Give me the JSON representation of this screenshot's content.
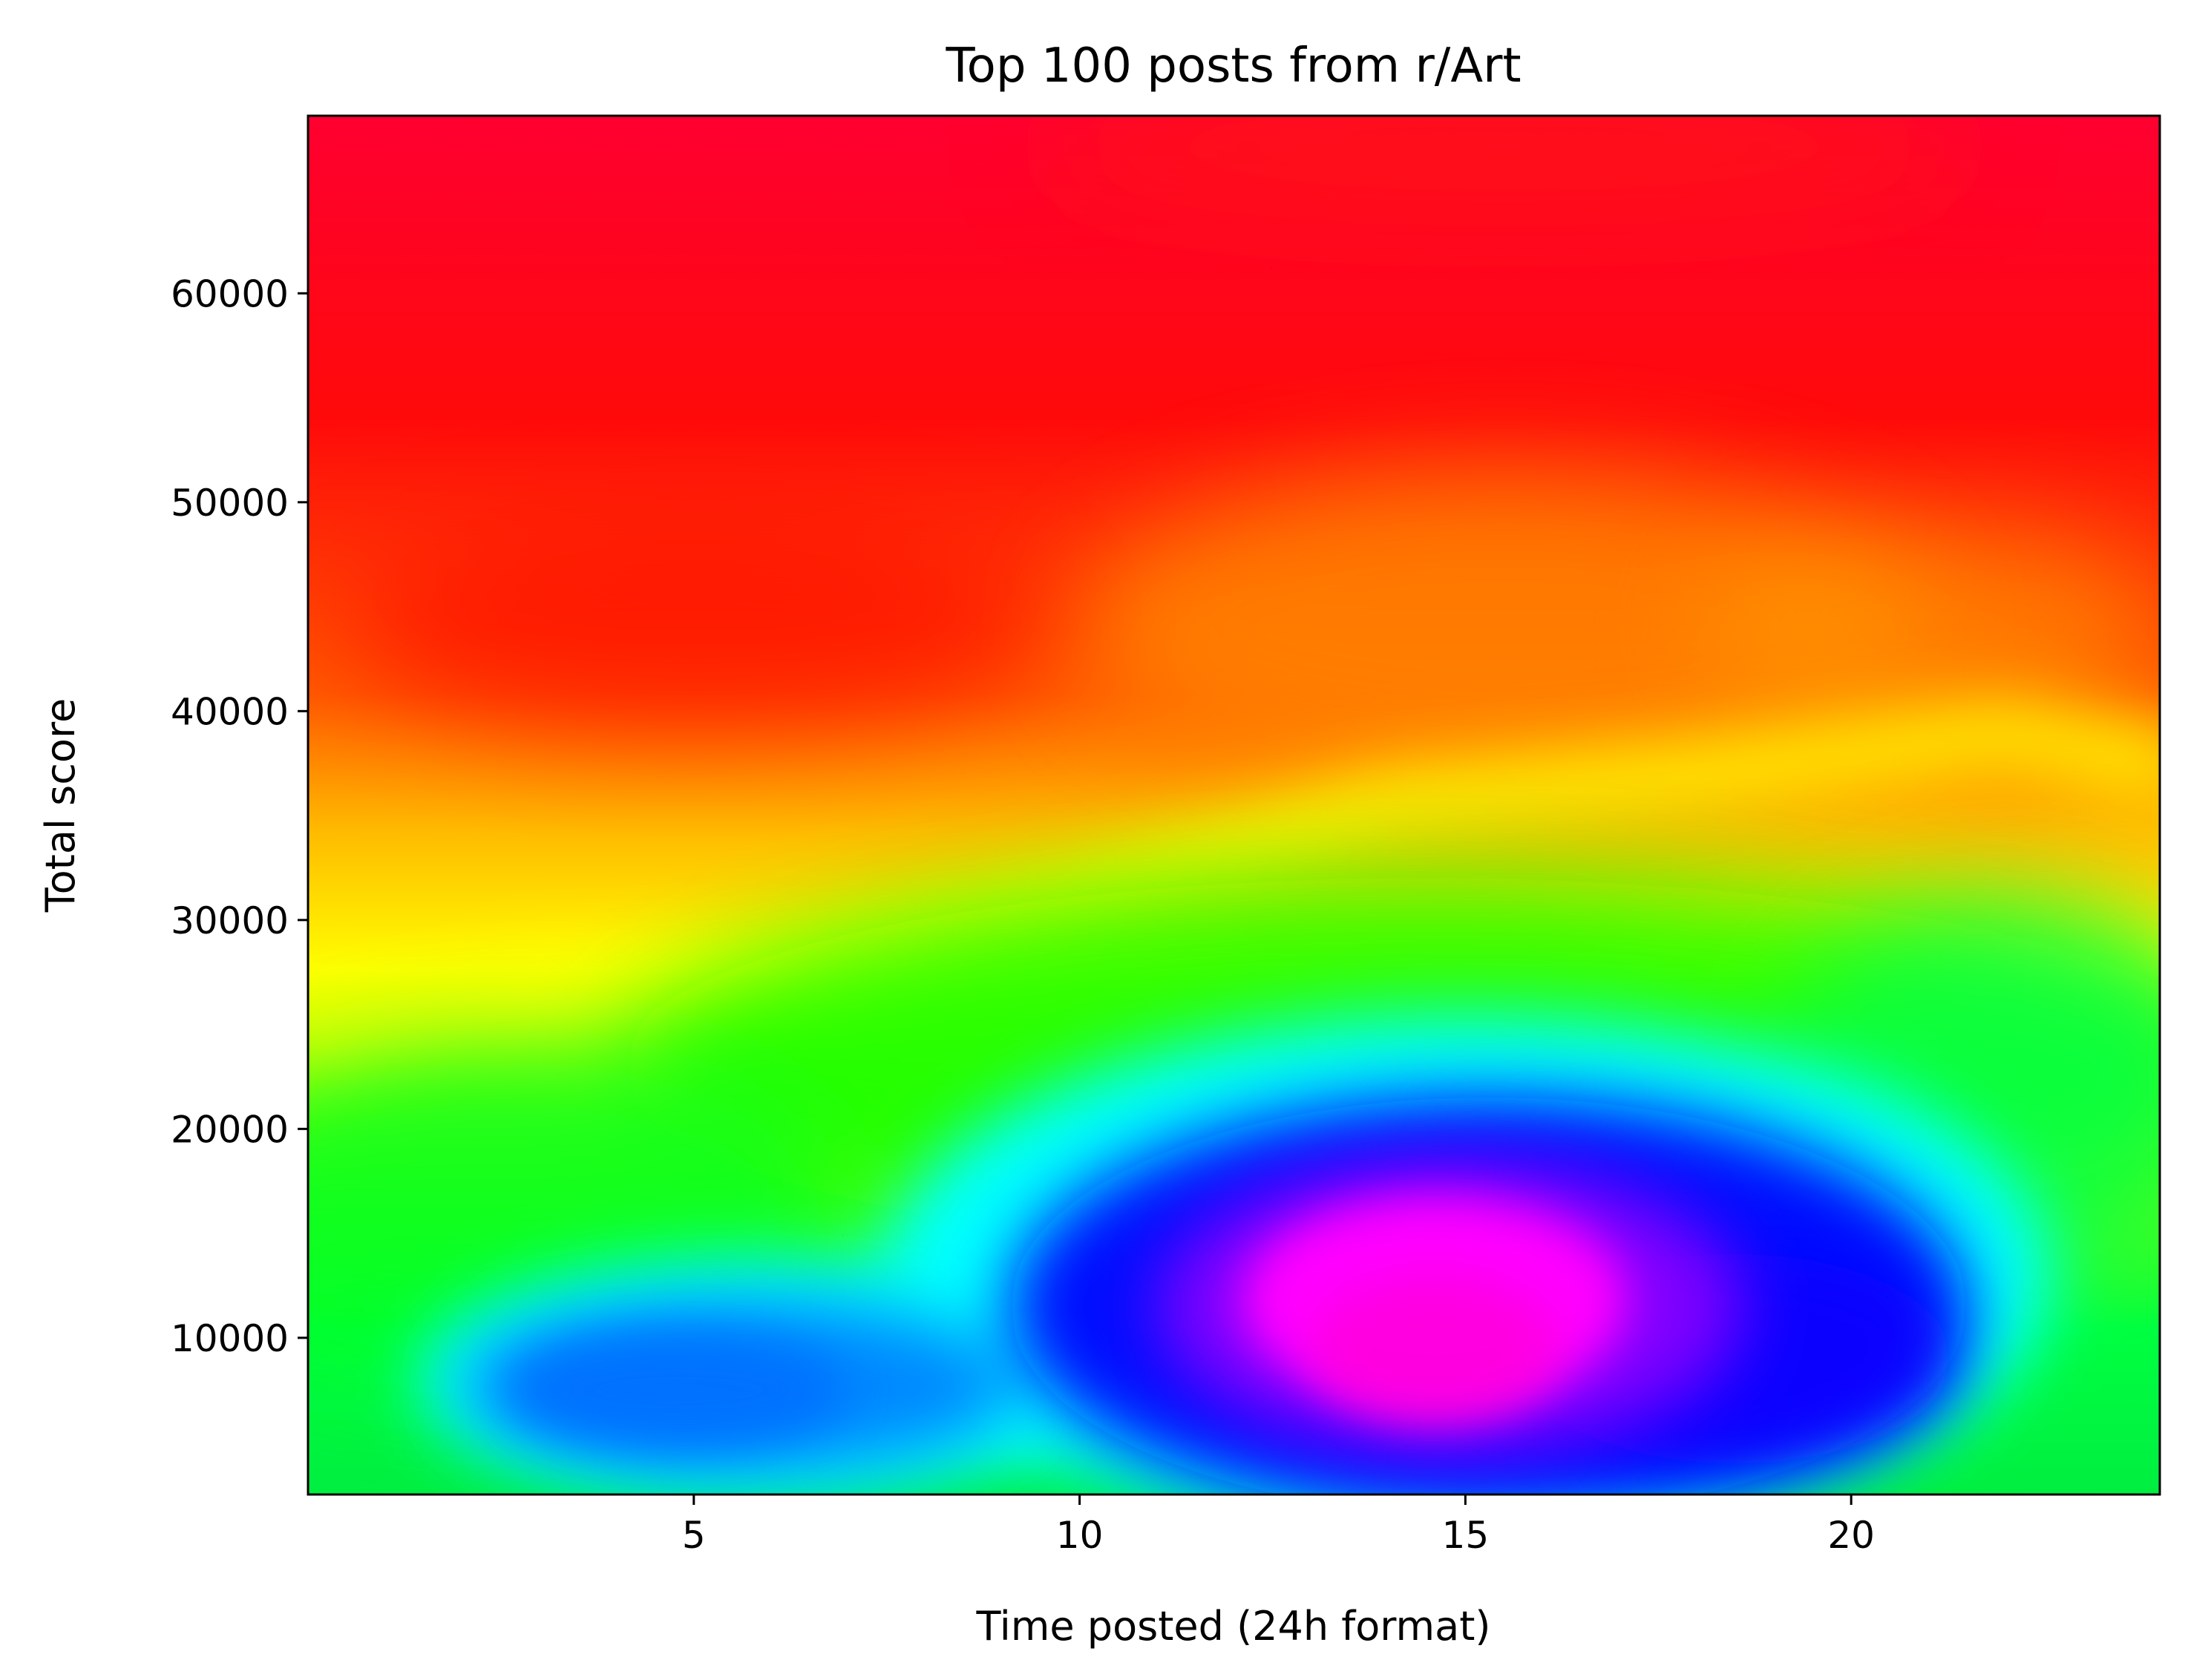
{
  "chart_data": {
    "type": "heatmap",
    "title": "Top 100 posts from r/Art",
    "xlabel": "Time posted (24h format)",
    "ylabel": "Total score",
    "xlim": [
      0,
      24
    ],
    "ylim": [
      2500,
      68500
    ],
    "x_ticks": [
      5,
      10,
      15,
      20
    ],
    "y_ticks": [
      10000,
      20000,
      30000,
      40000,
      50000,
      60000
    ],
    "x_tick_labels": [
      "5",
      "10",
      "15",
      "20"
    ],
    "y_tick_labels": [
      "10000",
      "20000",
      "30000",
      "40000",
      "50000",
      "60000"
    ],
    "grid": false,
    "legend": "none",
    "colormap": "gist_rainbow",
    "colormap_stops": [
      "#ff0029",
      "#ff0000",
      "#ff8c00",
      "#ffff00",
      "#00ff00",
      "#00ffff",
      "#0000ff",
      "#ff00ff"
    ],
    "density_ridge": [
      {
        "x": 0,
        "y": 24000
      },
      {
        "x": 3,
        "y": 26500
      },
      {
        "x": 6,
        "y": 27000
      },
      {
        "x": 10,
        "y": 31000
      },
      {
        "x": 14,
        "y": 35500
      },
      {
        "x": 18,
        "y": 37000
      },
      {
        "x": 22,
        "y": 39000
      },
      {
        "x": 24,
        "y": 37500
      }
    ],
    "density_peaks": [
      {
        "x": 15,
        "y": 11000,
        "level": "highest"
      },
      {
        "x": 5,
        "y": 7500,
        "level": "high"
      }
    ]
  }
}
